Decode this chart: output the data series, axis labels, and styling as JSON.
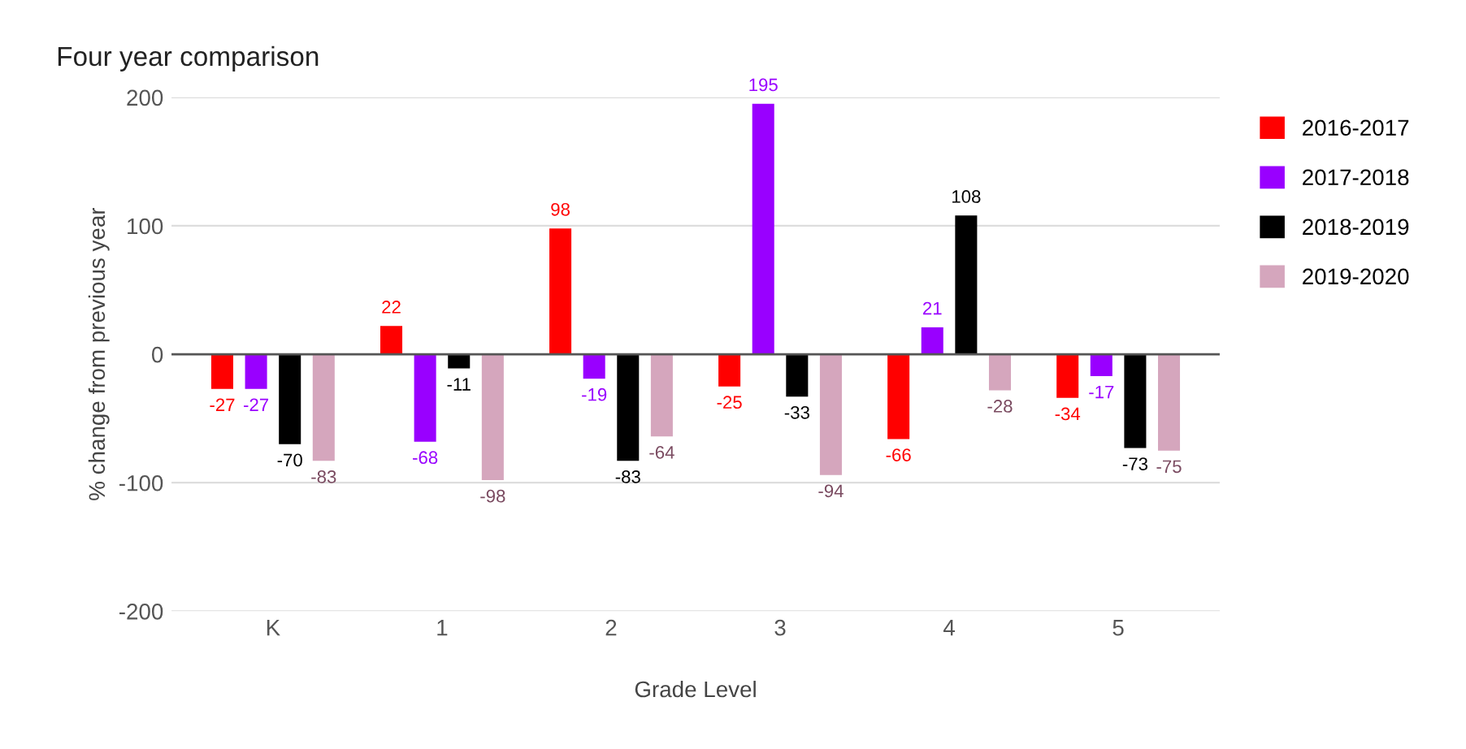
{
  "chart_data": {
    "type": "bar",
    "title": "Four year comparison",
    "xlabel": "Grade Level",
    "ylabel": "% change from previous year",
    "categories": [
      "K",
      "1",
      "2",
      "3",
      "4",
      "5"
    ],
    "series": [
      {
        "name": "2016-2017",
        "color": "#ff0000",
        "values": [
          -27,
          22,
          98,
          -25,
          -66,
          -34
        ]
      },
      {
        "name": "2017-2018",
        "color": "#9900ff",
        "values": [
          -27,
          -68,
          -19,
          195,
          21,
          -17
        ]
      },
      {
        "name": "2018-2019",
        "color": "#000000",
        "values": [
          -70,
          -11,
          -83,
          -33,
          108,
          -73
        ]
      },
      {
        "name": "2019-2020",
        "color": "#d5a6bd",
        "values": [
          -83,
          -98,
          -64,
          -94,
          -28,
          -75
        ]
      }
    ],
    "ylim": [
      -200,
      200
    ],
    "yticks": [
      -200,
      -100,
      0,
      100,
      200
    ],
    "grid": "y",
    "legend": "right",
    "data_labels": true
  }
}
